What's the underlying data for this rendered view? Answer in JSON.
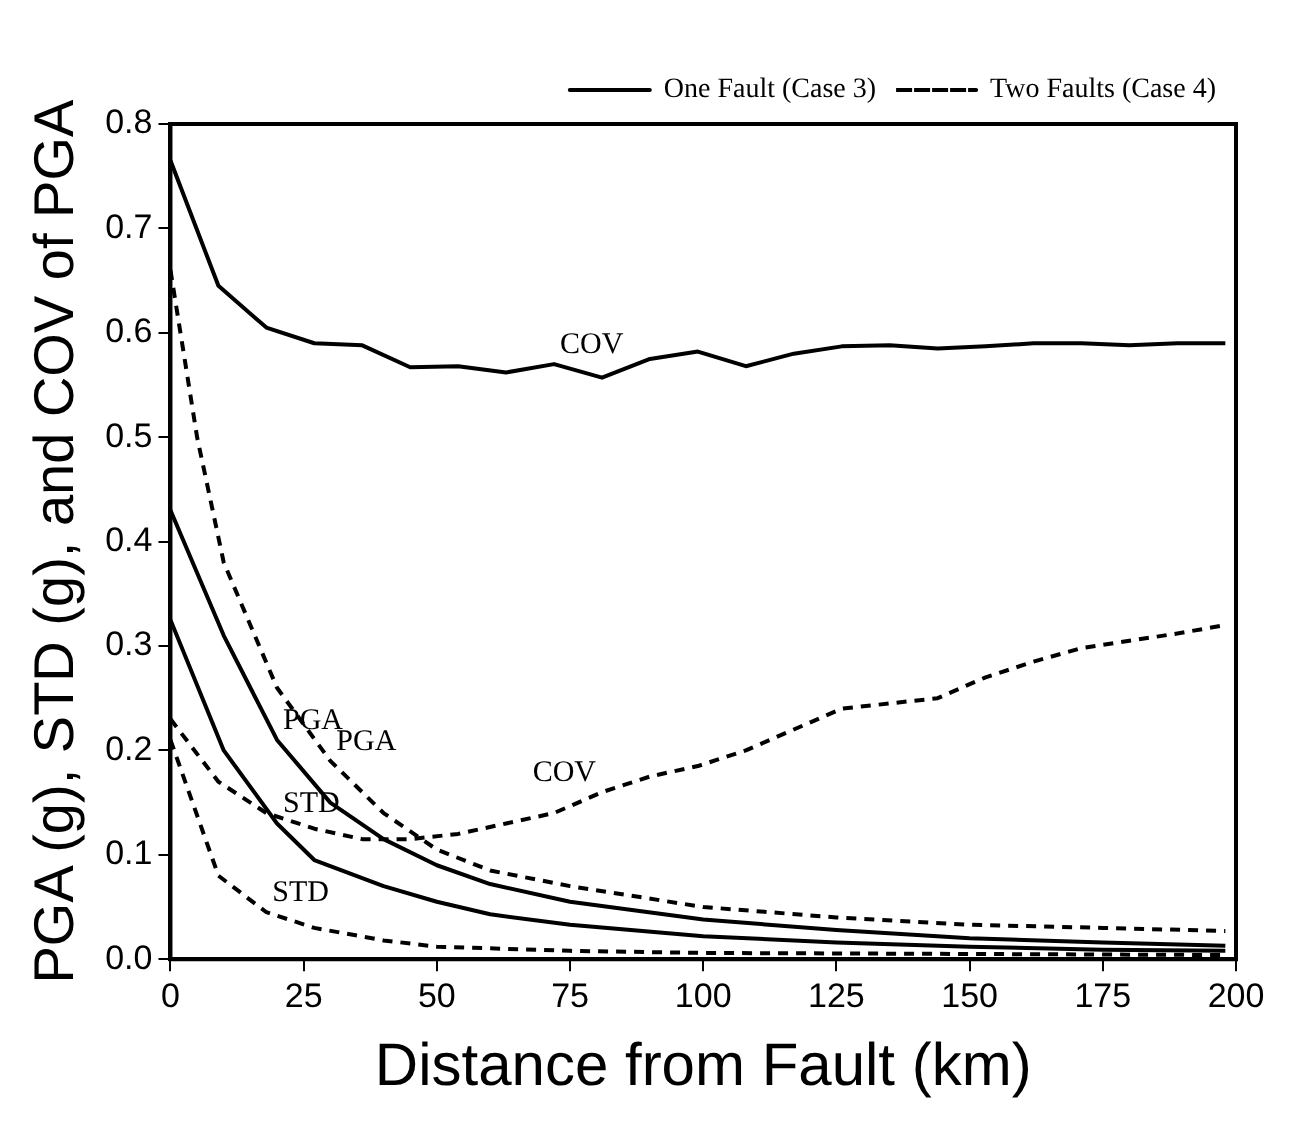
{
  "chart_data": {
    "type": "line",
    "xlabel": "Distance from Fault (km)",
    "ylabel": "PGA (g), STD (g), and COV of PGA",
    "xlim": [
      0,
      200
    ],
    "xticks": [
      0,
      25,
      50,
      75,
      100,
      125,
      150,
      175,
      200
    ],
    "ylim": [
      0,
      0.8
    ],
    "yticks": [
      {
        "value": 0,
        "label": "0.0"
      },
      0.1,
      0.2,
      0.3,
      0.4,
      0.5,
      0.6,
      0.7,
      0.8
    ],
    "grid": false,
    "legend": "top right",
    "marker": "none",
    "series": [
      {
        "name": "One Fault (Case 3)",
        "color": "#000000",
        "line_style": "solid",
        "x": [
          0,
          9,
          18,
          27,
          36,
          45,
          54,
          63,
          72,
          81,
          90,
          99,
          108,
          117,
          126,
          135,
          144,
          153,
          162,
          171,
          180,
          189,
          198
        ],
        "values": [
          0.765,
          0.645,
          0.605,
          0.59,
          0.588,
          0.567,
          0.568,
          0.562,
          0.57,
          0.557,
          0.575,
          0.582,
          0.568,
          0.58,
          0.587,
          0.588,
          0.585,
          0.587,
          0.59,
          0.59,
          0.588,
          0.59,
          0.59
        ]
      },
      {
        "color": "#000000",
        "line_style": "solid",
        "x": [
          0,
          10,
          20,
          30,
          40,
          50,
          60,
          75,
          100,
          125,
          150,
          175,
          198
        ],
        "values": [
          0.43,
          0.31,
          0.21,
          0.15,
          0.115,
          0.09,
          0.072,
          0.055,
          0.038,
          0.028,
          0.02,
          0.016,
          0.013
        ]
      },
      {
        "color": "#000000",
        "line_style": "solid",
        "x": [
          0,
          10,
          20,
          27,
          40,
          50,
          60,
          75,
          100,
          125,
          150,
          175,
          198
        ],
        "values": [
          0.325,
          0.2,
          0.13,
          0.095,
          0.07,
          0.055,
          0.043,
          0.033,
          0.022,
          0.016,
          0.012,
          0.009,
          0.008
        ]
      },
      {
        "name": "Two Faults (Case 4)",
        "color": "#000000",
        "line_style": "dashed",
        "x": [
          0,
          9,
          18,
          27,
          36,
          45,
          54,
          63,
          72,
          81,
          90,
          99,
          108,
          117,
          126,
          135,
          144,
          153,
          162,
          171,
          180,
          189,
          198
        ],
        "values": [
          0.23,
          0.17,
          0.14,
          0.125,
          0.115,
          0.115,
          0.12,
          0.13,
          0.14,
          0.16,
          0.175,
          0.185,
          0.2,
          0.22,
          0.24,
          0.245,
          0.25,
          0.27,
          0.285,
          0.298,
          0.305,
          0.312,
          0.32
        ]
      },
      {
        "color": "#000000",
        "line_style": "dashed",
        "x": [
          0,
          5,
          10,
          20,
          30,
          40,
          50,
          60,
          75,
          100,
          125,
          150,
          175,
          198
        ],
        "values": [
          0.66,
          0.5,
          0.38,
          0.26,
          0.19,
          0.14,
          0.105,
          0.085,
          0.07,
          0.05,
          0.04,
          0.033,
          0.03,
          0.027
        ]
      },
      {
        "color": "#000000",
        "line_style": "dashed",
        "x": [
          0,
          9,
          18,
          27,
          40,
          50,
          75,
          100,
          150,
          198
        ],
        "values": [
          0.21,
          0.08,
          0.045,
          0.03,
          0.018,
          0.012,
          0.008,
          0.006,
          0.005,
          0.004
        ]
      }
    ],
    "annotations": [
      {
        "text": "COV",
        "x": 72,
        "y": 0.57
      },
      {
        "text": "COV",
        "x": 81,
        "y": 0.16
      },
      {
        "text": "PGA",
        "x": 30,
        "y": 0.19
      },
      {
        "text": "PGA",
        "x": 20,
        "y": 0.21
      },
      {
        "text": "STD",
        "x": 20,
        "y": 0.13
      },
      {
        "text": "STD",
        "x": 18,
        "y": 0.045
      }
    ]
  }
}
